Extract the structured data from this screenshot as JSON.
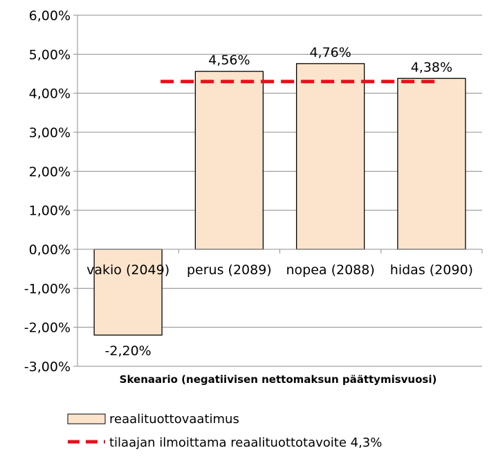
{
  "chart_data": {
    "type": "bar",
    "categories": [
      "vakio (2049)",
      "perus (2089)",
      "nopea (2088)",
      "hidas (2090)"
    ],
    "series": [
      {
        "name": "reaalituottovaatimus",
        "values": [
          -2.2,
          4.56,
          4.76,
          4.38
        ],
        "data_labels": [
          "-2,20%",
          "4,56%",
          "4,76%",
          "4,38%"
        ],
        "color": "#FCE4CC",
        "border_color": "#000000"
      }
    ],
    "reference_line": {
      "name": "tilaajan ilmoittama reaalituottotavoite 4,3%",
      "value": 4.3,
      "color": "#E8101A",
      "style": "dashed"
    },
    "title": "",
    "xlabel": "Skenaario (negatiivisen nettomaksun päättymisvuosi)",
    "ylabel": "",
    "ylim": [
      -3,
      6
    ],
    "yticks": [
      6,
      5,
      4,
      3,
      2,
      1,
      0,
      -1,
      -2,
      -3
    ],
    "ytick_labels": [
      "6,00%",
      "5,00%",
      "4,00%",
      "3,00%",
      "2,00%",
      "1,00%",
      "0,00%",
      "-1,00%",
      "-2,00%",
      "-3,00%"
    ],
    "grid": true,
    "legend_position": "bottom"
  }
}
